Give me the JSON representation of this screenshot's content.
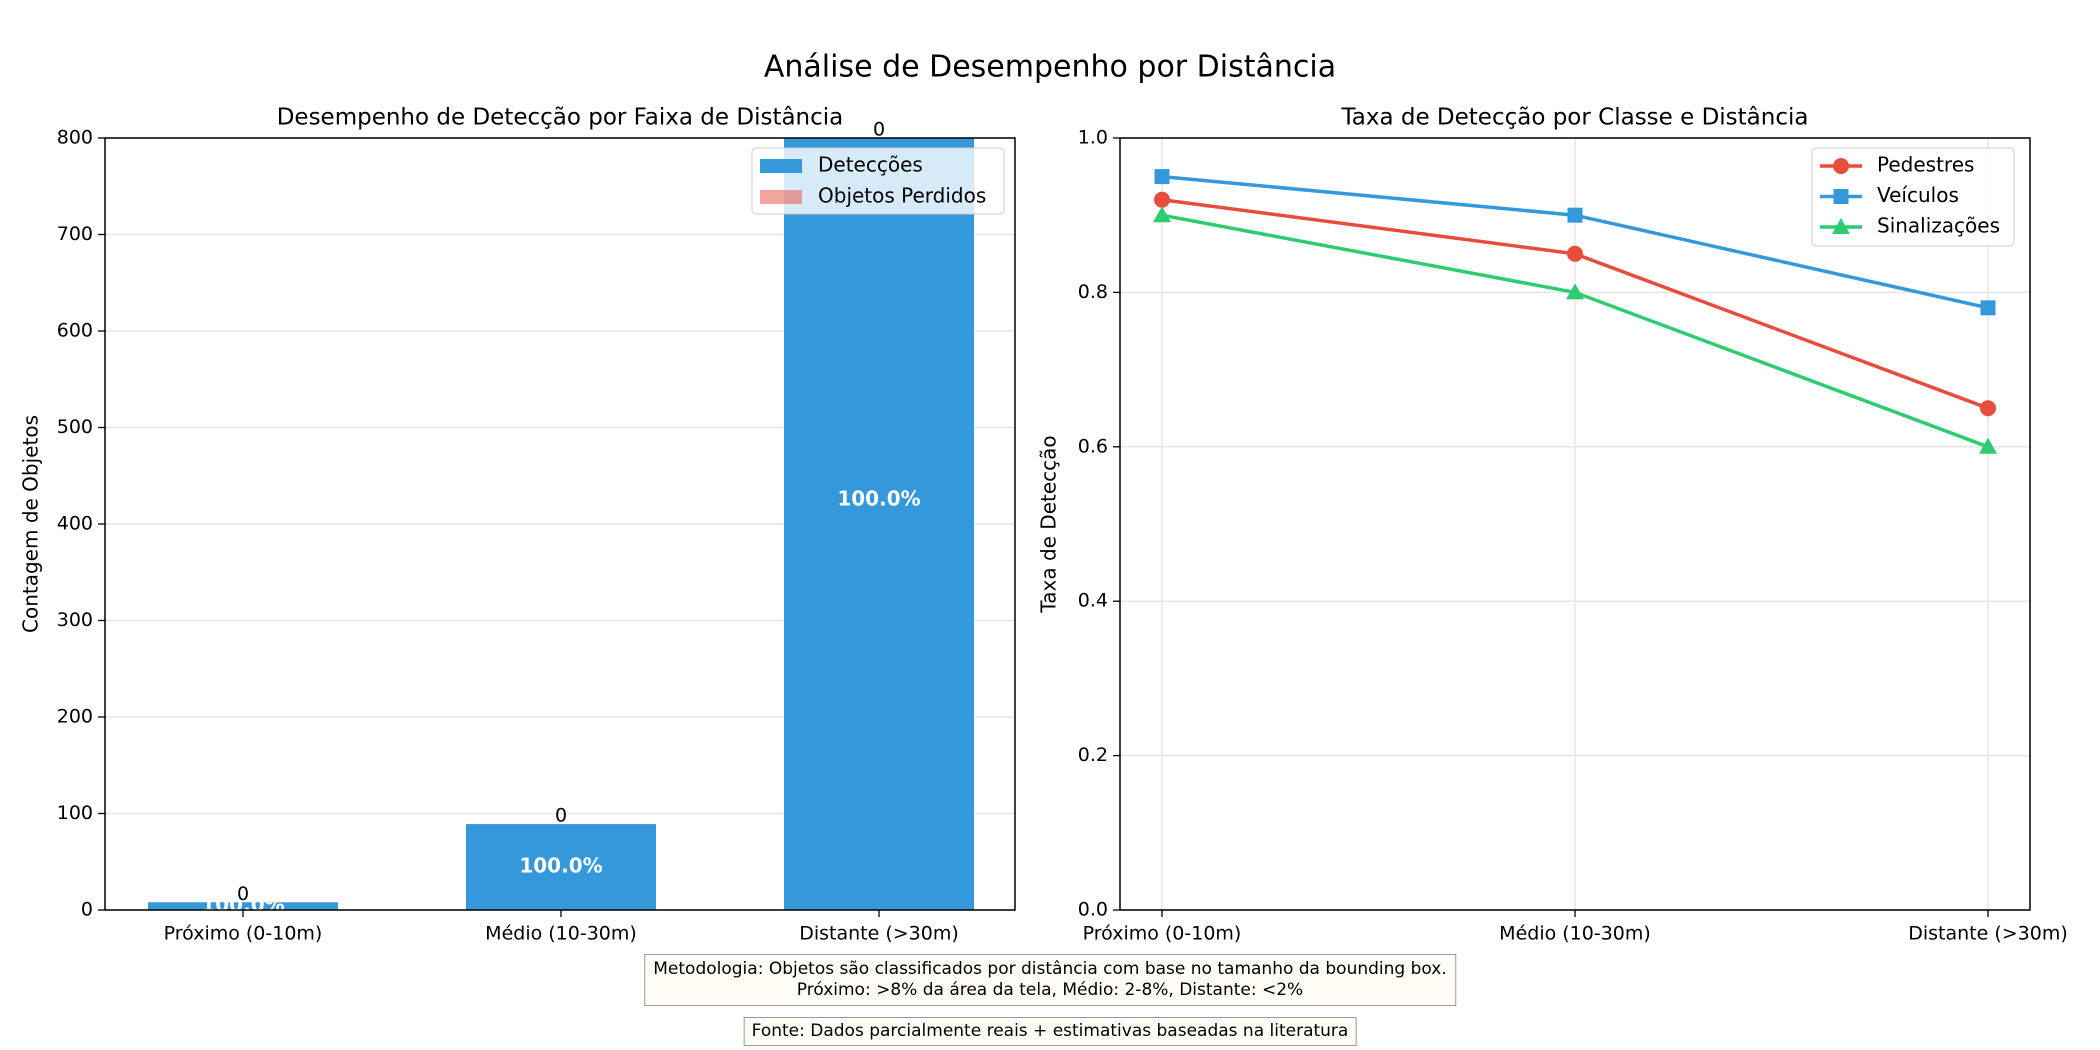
{
  "figure": {
    "title": "Análise de Desempenho por Distância"
  },
  "chart_data": [
    {
      "type": "bar",
      "title": "Desempenho de Detecção por Faixa de Distância",
      "xlabel": "",
      "ylabel": "Contagem de Objetos",
      "categories": [
        "Próximo (0-10m)",
        "Médio (10-30m)",
        "Distante (>30m)"
      ],
      "ylim": [
        0,
        800
      ],
      "yticks": [
        0,
        100,
        200,
        300,
        400,
        500,
        600,
        700,
        800
      ],
      "stacked": true,
      "series": [
        {
          "name": "Detecções",
          "values": [
            8,
            89,
            850
          ],
          "color": "#3498db"
        },
        {
          "name": "Objetos Perdidos",
          "values": [
            0,
            0,
            0
          ],
          "color": "#e74c3c"
        }
      ],
      "bar_labels": [
        "100.0%",
        "100.0%",
        "100.0%"
      ],
      "top_labels": [
        "0",
        "0",
        "0"
      ],
      "grid": "y",
      "legend": "top-right"
    },
    {
      "type": "line",
      "title": "Taxa de Detecção por Classe e Distância",
      "xlabel": "",
      "ylabel": "Taxa de Detecção",
      "categories": [
        "Próximo (0-10m)",
        "Médio (10-30m)",
        "Distante (>30m)"
      ],
      "ylim": [
        0,
        1.0
      ],
      "yticks": [
        "0.0",
        "0.2",
        "0.4",
        "0.6",
        "0.8",
        "1.0"
      ],
      "series": [
        {
          "name": "Pedestres",
          "values": [
            0.92,
            0.85,
            0.65
          ],
          "color": "#e74c3c",
          "marker": "circle"
        },
        {
          "name": "Veículos",
          "values": [
            0.95,
            0.9,
            0.78
          ],
          "color": "#3498db",
          "marker": "square"
        },
        {
          "name": "Sinalizações",
          "values": [
            0.9,
            0.8,
            0.6
          ],
          "color": "#2ecc71",
          "marker": "triangle"
        }
      ],
      "grid": "both",
      "legend": "top-right"
    }
  ],
  "notes": {
    "methodology_line1": "Metodologia: Objetos são classificados por distância com base no tamanho da bounding box.",
    "methodology_line2": "Próximo: >8% da área da tela, Médio: 2-8%, Distante: <2%",
    "source": "Fonte: Dados parcialmente reais + estimativas baseadas na literatura"
  }
}
